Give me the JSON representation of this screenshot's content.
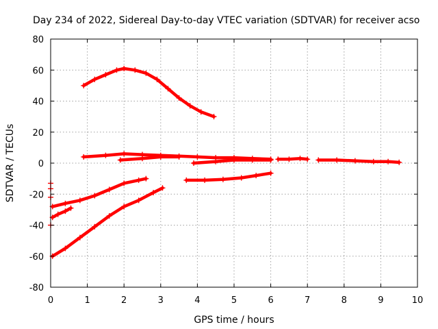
{
  "chart_data": {
    "type": "scatter",
    "title": "Day 234 of 2022, Sidereal Day-to-day VTEC variation (SDTVAR) for receiver acso",
    "xlabel": "GPS time / hours",
    "ylabel": "SDTVAR / TECUs",
    "xlim": [
      0,
      10
    ],
    "ylim": [
      -80,
      80
    ],
    "xticks": [
      "0",
      "1",
      "2",
      "3",
      "4",
      "5",
      "6",
      "7",
      "8",
      "9",
      "10"
    ],
    "yticks": [
      "-80",
      "-60",
      "-40",
      "-20",
      "0",
      "20",
      "40",
      "60",
      "80"
    ],
    "grid": true,
    "color": "#ff0000",
    "marker": "plus",
    "series": [
      {
        "x": [
          0.9,
          1.2,
          1.5,
          1.8,
          2.0,
          2.3,
          2.6,
          2.9,
          3.2,
          3.5,
          3.8,
          4.1,
          4.45
        ],
        "y": [
          50,
          54,
          57,
          60,
          61,
          60,
          58,
          54,
          48,
          42,
          37,
          33,
          30
        ]
      },
      {
        "x": [
          0.9,
          1.5,
          2.0,
          2.5,
          3.0,
          3.5,
          4.0,
          4.5,
          5.0,
          5.5,
          6.0
        ],
        "y": [
          4,
          5,
          6,
          5.5,
          5,
          4.5,
          4,
          3.5,
          3.5,
          3,
          2.5
        ]
      },
      {
        "x": [
          1.9,
          2.5,
          3.0,
          3.5
        ],
        "y": [
          2,
          3,
          4,
          4
        ]
      },
      {
        "x": [
          3.9,
          4.5,
          5.0,
          5.5,
          6.0
        ],
        "y": [
          0,
          1,
          2,
          2,
          2
        ]
      },
      {
        "x": [
          6.2,
          6.5,
          6.8,
          7.0
        ],
        "y": [
          2.5,
          2.5,
          3,
          2.5
        ]
      },
      {
        "x": [
          7.3,
          7.8,
          8.3,
          8.8,
          9.2,
          9.5
        ],
        "y": [
          2,
          2,
          1.5,
          1,
          1,
          0.5
        ]
      },
      {
        "x": [
          0.05,
          0.4,
          0.8,
          1.2,
          1.6,
          2.0,
          2.4,
          2.6
        ],
        "y": [
          -28,
          -26,
          -24,
          -21,
          -17,
          -13,
          -11,
          -10
        ]
      },
      {
        "x": [
          0.05,
          0.2,
          0.4,
          0.55
        ],
        "y": [
          -35,
          -33,
          -31,
          -29
        ]
      },
      {
        "x": [
          0.05,
          0.4,
          0.8,
          1.2,
          1.6,
          2.0,
          2.4,
          2.8,
          3.05
        ],
        "y": [
          -60,
          -55,
          -48,
          -41,
          -34,
          -28,
          -24,
          -19,
          -16
        ]
      },
      {
        "x": [
          3.7,
          4.2,
          4.7,
          5.2,
          5.6,
          6.0
        ],
        "y": [
          -11,
          -11,
          -10.5,
          -9.5,
          -8,
          -6.5
        ]
      },
      {
        "x": [
          0.0,
          0.0,
          0.0,
          0.0
        ],
        "y": [
          -13,
          -16.5,
          -22,
          -40
        ]
      }
    ]
  }
}
